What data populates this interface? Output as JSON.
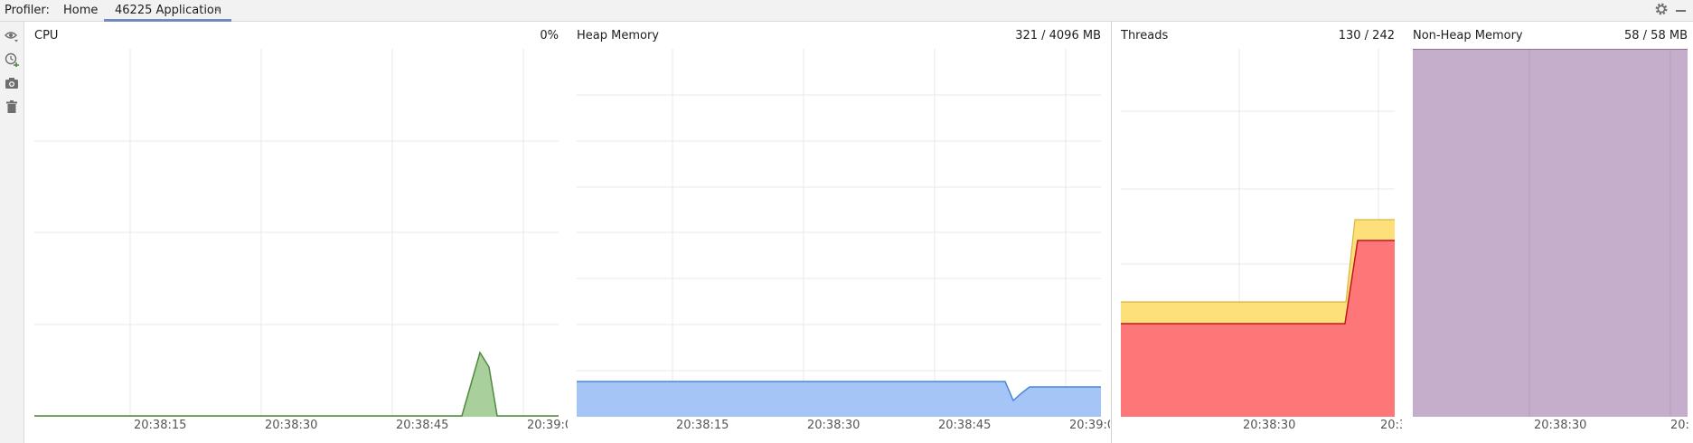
{
  "tabs": {
    "profiler_label": "Profiler:",
    "home_label": "Home",
    "app_label": "46225 Application",
    "close_glyph": "×"
  },
  "toolbar": {
    "icons": [
      "eye-icon",
      "clock-icon",
      "camera-icon",
      "trash-icon"
    ]
  },
  "panels": {
    "cpu": {
      "title": "CPU",
      "value": "0%"
    },
    "heap": {
      "title": "Heap Memory",
      "value": "321 / 4096 MB"
    },
    "threads": {
      "title": "Threads",
      "value": "130 / 242"
    },
    "nonheap": {
      "title": "Non-Heap Memory",
      "value": "58 / 58 MB"
    }
  },
  "axis": {
    "cpu_ticks": [
      "20:38:15",
      "20:38:30",
      "20:38:45",
      "20:39:0"
    ],
    "heap_ticks": [
      "20:38:15",
      "20:38:30",
      "20:38:45",
      "20:39:0"
    ],
    "threads_ticks": [
      "20:38:30",
      "20:3"
    ],
    "nonheap_ticks": [
      "20:38:30",
      "20:3"
    ]
  },
  "colors": {
    "cpu_fill": "#a8cf9c",
    "cpu_line": "#4f8a3f",
    "heap_fill": "#a4c5f5",
    "heap_line": "#4a86db",
    "threads_total_fill": "#fde07a",
    "threads_live_fill": "#fd7678",
    "threads_line": "#c0171c",
    "nonheap_fill": "#c4aecb",
    "grid": "#e8e8e8"
  }
}
